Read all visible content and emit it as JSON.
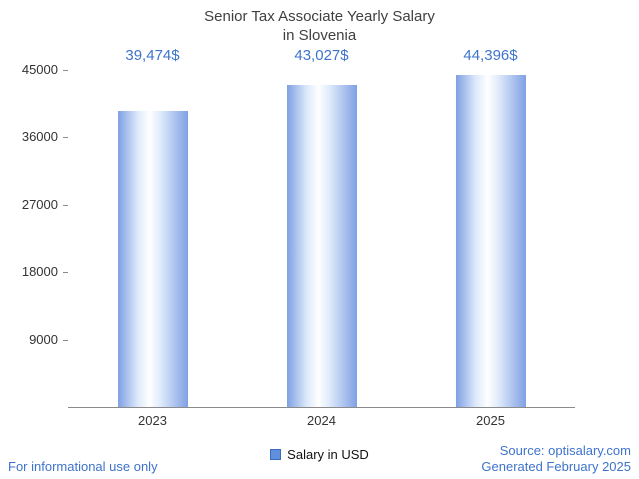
{
  "title": {
    "line1": "Senior Tax Associate Yearly Salary",
    "line2": "in Slovenia"
  },
  "chart_data": {
    "type": "bar",
    "title": "Senior Tax Associate Yearly Salary in Slovenia",
    "categories": [
      "2023",
      "2024",
      "2025"
    ],
    "values": [
      39474,
      43027,
      44396
    ],
    "value_labels": [
      "39,474$",
      "43,027$",
      "44,396$"
    ],
    "ylim": [
      0,
      45000
    ],
    "yticks": [
      9000,
      18000,
      27000,
      36000,
      45000
    ],
    "grid": "off",
    "legend": "Salary in USD",
    "legend_position": "bottom-center"
  },
  "footer": {
    "left": "For informational use only",
    "source": "Source: optisalary.com",
    "generated": "Generated February 2025"
  },
  "colors": {
    "accent": "#3e73cc",
    "title": "#404040",
    "text": "#333333",
    "axis": "#8a8a8a",
    "bar-edge": "#7fa0e4",
    "bar-light": "#dce8fa",
    "bar-mid": "#ffffff",
    "legend-swatch": "#6090dd",
    "legend-border": "#3a6bbf"
  }
}
